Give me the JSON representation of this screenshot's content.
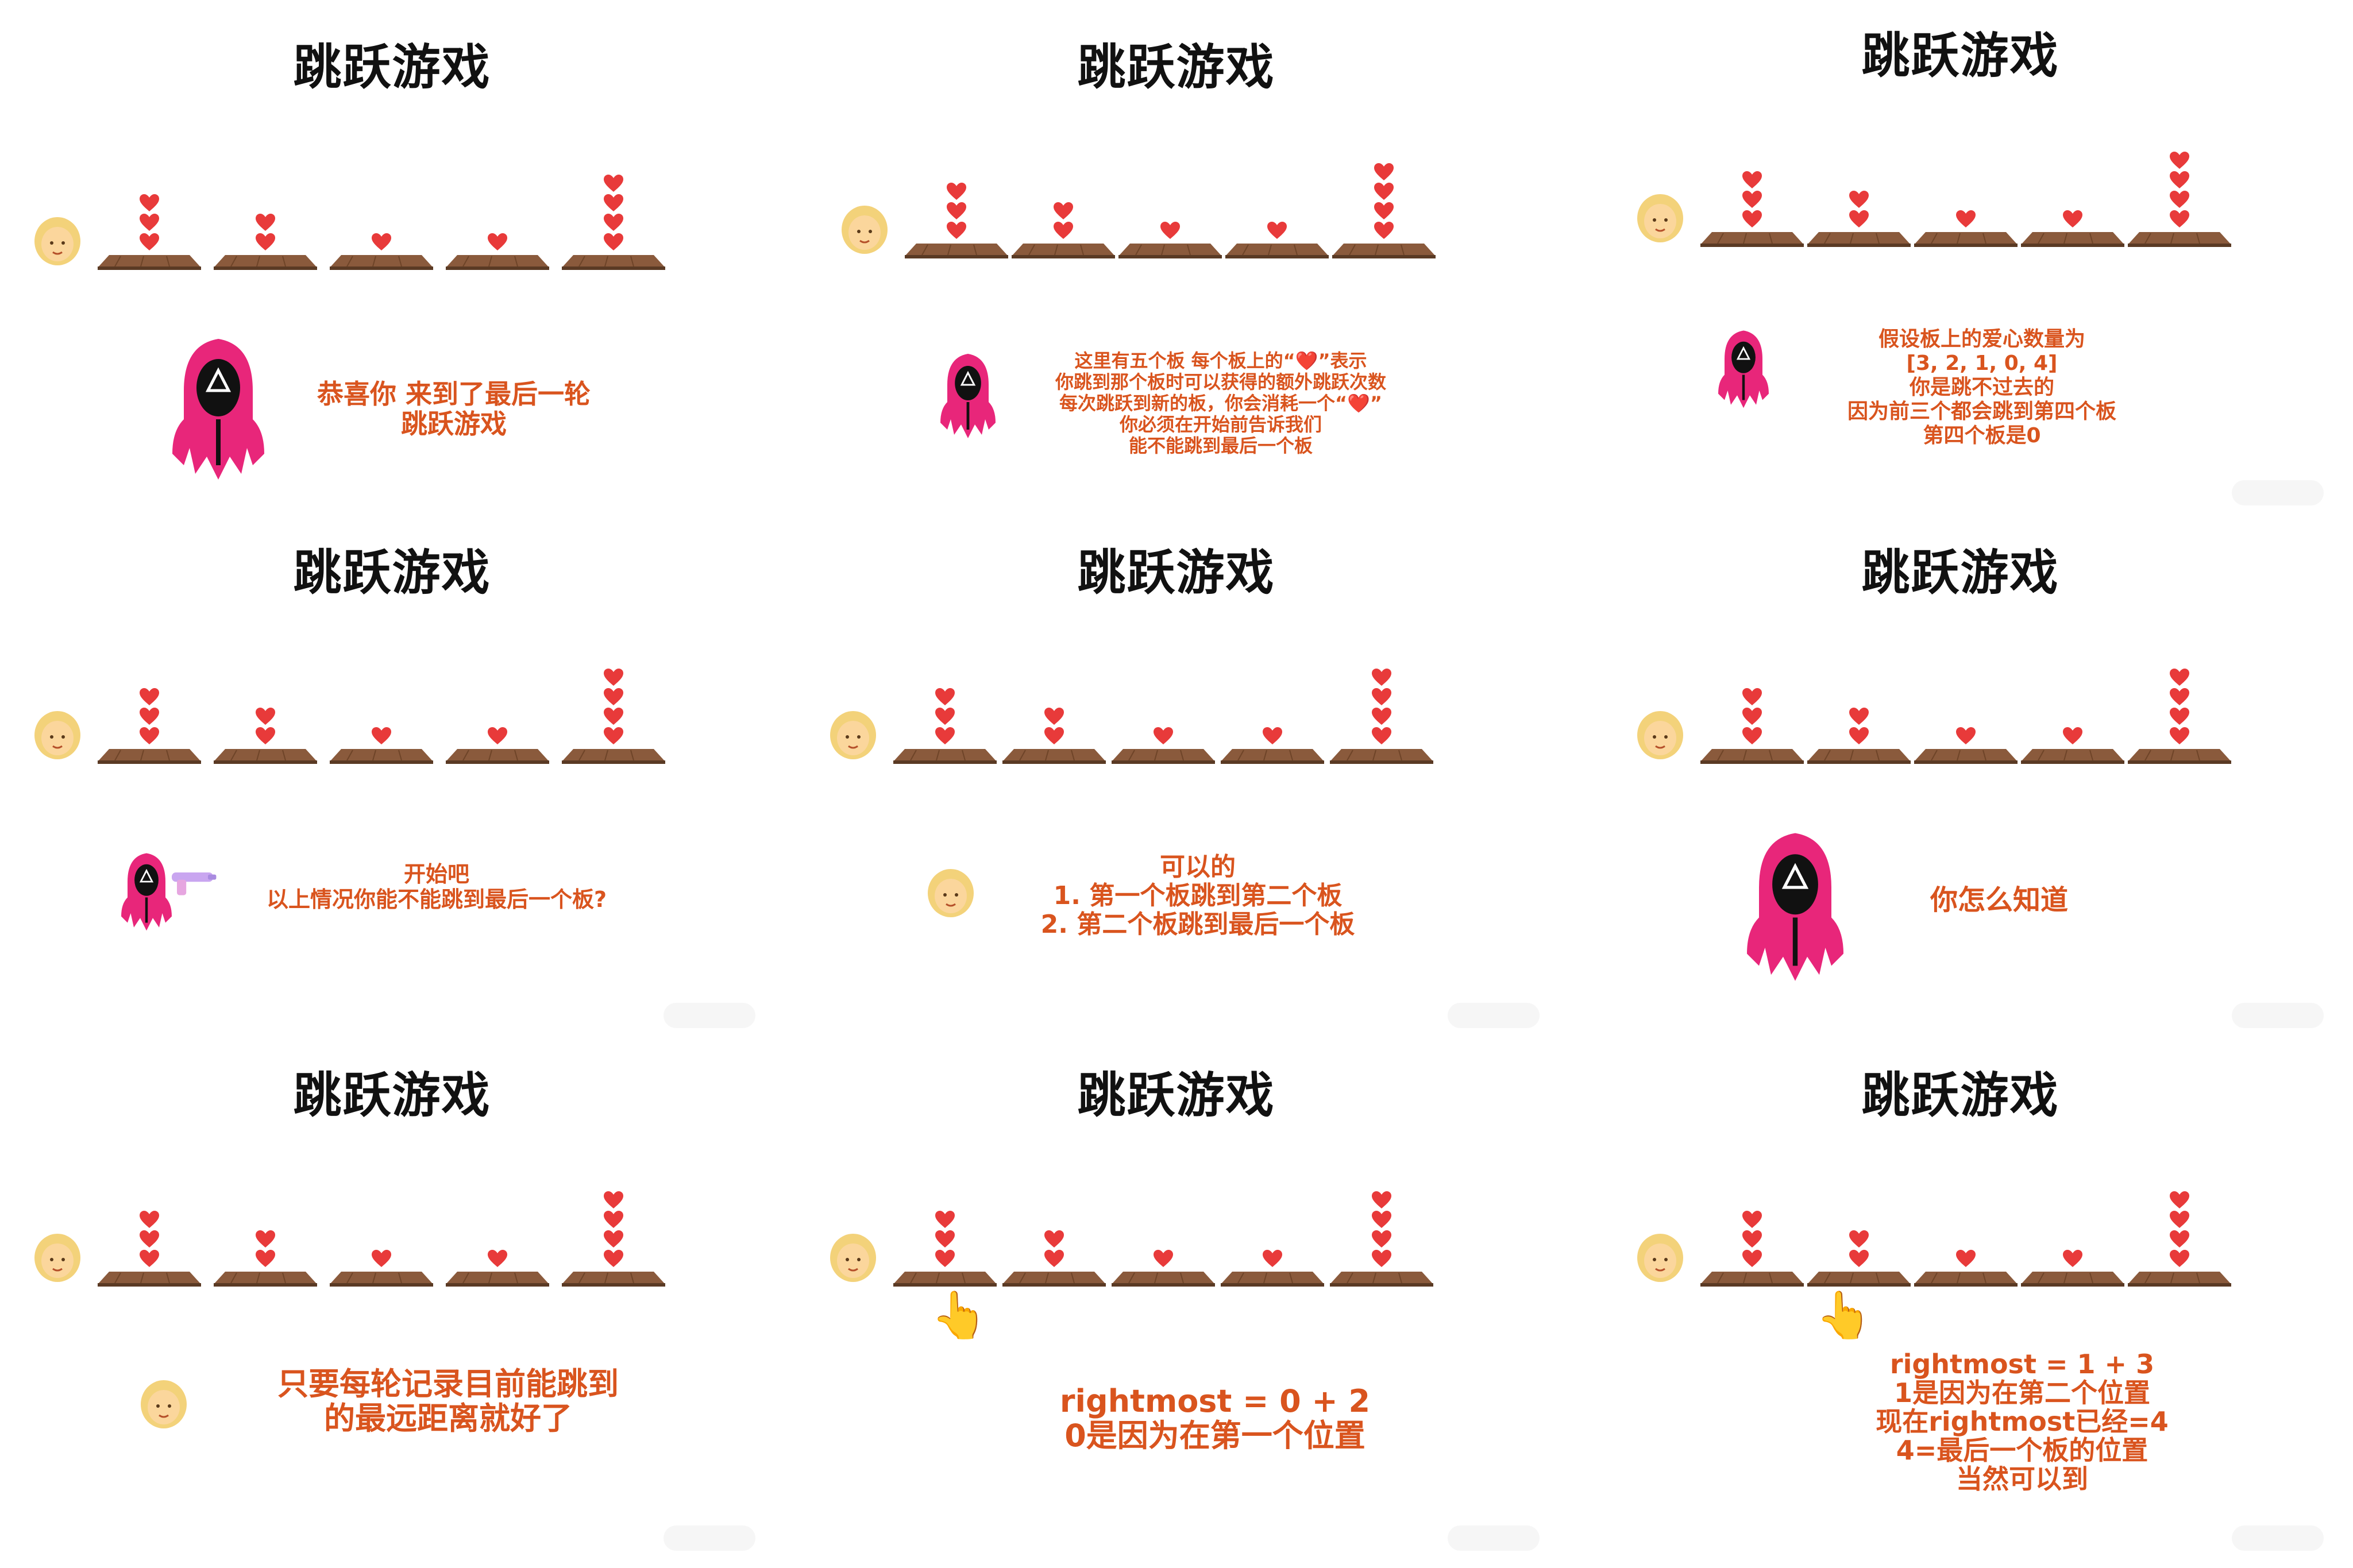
{
  "title": "跳跃游戏",
  "colors": {
    "accent_text": "#d9541e",
    "guard_pink": "#e8267a",
    "board_brown": "#8a5a3c",
    "heart_red": "#e83a3a"
  },
  "icons": {
    "player": "blonde-woman-icon",
    "guard": "hooded-guard-icon",
    "heart": "heart-icon",
    "board": "wooden-board-icon",
    "pointer": "pointing-hand-icon",
    "gun": "water-gun-icon"
  },
  "boards": {
    "hearts": [
      3,
      2,
      1,
      0,
      4
    ]
  },
  "panels": [
    {
      "speaker": "guard",
      "lines": [
        "恭喜你 来到了最后一轮",
        "跳跃游戏"
      ]
    },
    {
      "speaker": "guard",
      "lines": [
        "这里有五个板 每个板上的“❤️”表示",
        "你跳到那个板时可以获得的额外跳跃次数",
        "每次跳跃到新的板，你会消耗一个“❤️”",
        "你必须在开始前告诉我们",
        "能不能跳到最后一个板"
      ]
    },
    {
      "speaker": "guard",
      "lines": [
        "假设板上的爱心数量为",
        "[3, 2, 1, 0, 4]",
        "你是跳不过去的",
        "因为前三个都会跳到第四个板",
        "第四个板是0"
      ]
    },
    {
      "speaker": "guard-gun",
      "lines": [
        "开始吧",
        "以上情况你能不能跳到最后一个板?"
      ]
    },
    {
      "speaker": "player",
      "lines": [
        "可以的",
        "1. 第一个板跳到第二个板",
        "2. 第二个板跳到最后一个板"
      ]
    },
    {
      "speaker": "guard",
      "lines": [
        "你怎么知道"
      ]
    },
    {
      "speaker": "player",
      "lines": [
        "只要每轮记录目前能跳到",
        "的最远距离就好了"
      ]
    },
    {
      "speaker": "pointer",
      "lines": [
        "rightmost = 0 + 2",
        "0是因为在第一个位置"
      ]
    },
    {
      "speaker": "pointer",
      "lines": [
        "rightmost = 1 + 3",
        "1是因为在第二个位置",
        "现在rightmost已经=4",
        "4=最后一个板的位置",
        "当然可以到"
      ]
    }
  ]
}
